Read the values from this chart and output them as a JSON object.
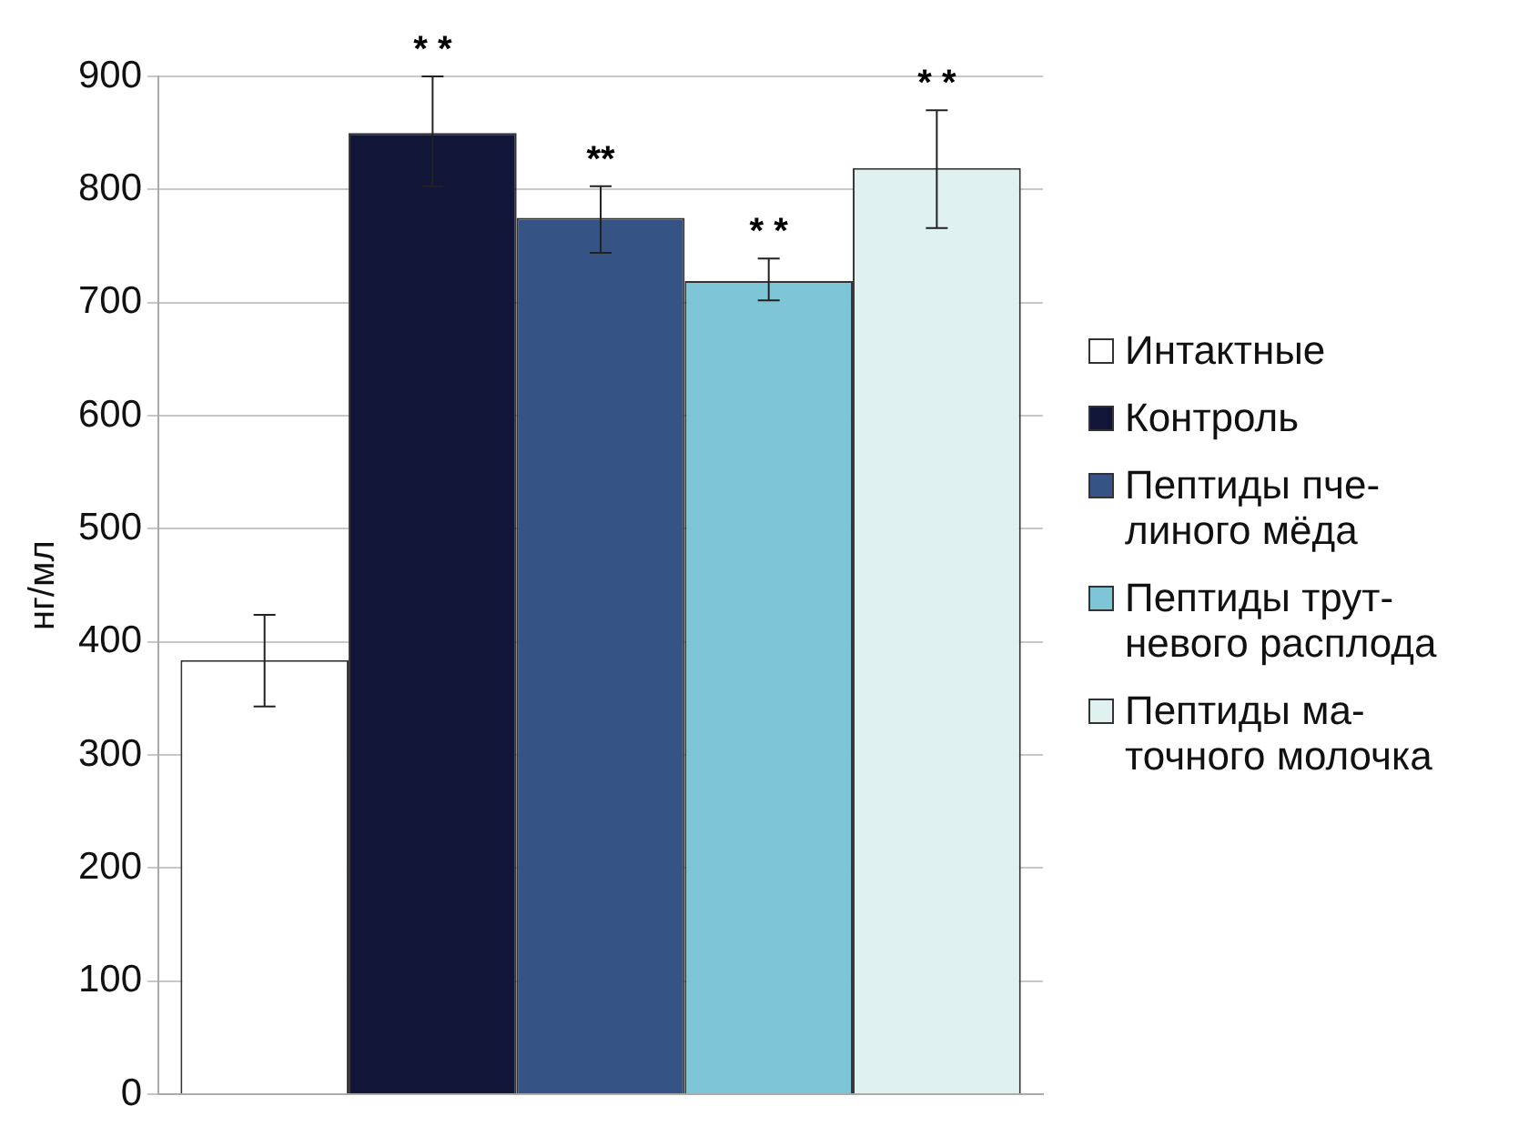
{
  "chart_data": {
    "type": "bar",
    "ylabel": "нг/мл",
    "categories": [
      null
    ],
    "ylim": [
      0,
      900
    ],
    "yticks": [
      0,
      100,
      200,
      300,
      400,
      500,
      600,
      700,
      800,
      900
    ],
    "grid": "y",
    "legend": "right",
    "series": [
      {
        "name": "Интактные",
        "color": "#ffffff",
        "values": [
          384
        ],
        "errors": [
          [
            343,
            424
          ]
        ],
        "value_labels": [
          null
        ]
      },
      {
        "name": "Контроль",
        "color": "#111538",
        "values": [
          850
        ],
        "errors": [
          [
            803,
            900
          ]
        ],
        "value_labels": [
          "* *"
        ]
      },
      {
        "name": "Пептиды пче-\nлиного мёда",
        "color": "#355485",
        "values": [
          775
        ],
        "errors": [
          [
            744,
            803
          ]
        ],
        "value_labels": [
          "**"
        ]
      },
      {
        "name": "Пептиды трут-\nневого расплода",
        "color": "#7fc5d8",
        "values": [
          719
        ],
        "errors": [
          [
            702,
            739
          ]
        ],
        "value_labels": [
          "* *"
        ]
      },
      {
        "name": "Пептиды ма-\nточного молочка",
        "color": "#dff2f0",
        "values": [
          819
        ],
        "errors": [
          [
            766,
            870
          ]
        ],
        "value_labels": [
          "* *"
        ]
      }
    ]
  }
}
